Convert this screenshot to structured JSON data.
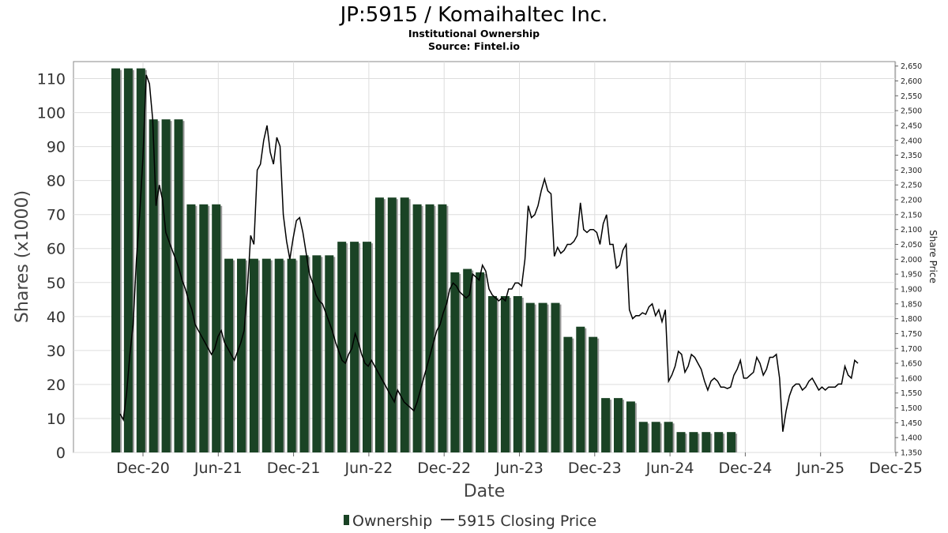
{
  "title": "JP:5915 / Komaihaltec Inc.",
  "subtitle": "Institutional Ownership",
  "source": "Source: Fintel.io",
  "colors": {
    "bar": "#1a4325",
    "bar_shadow": "#9a9a9a",
    "line": "#000000",
    "grid": "#dddddd"
  },
  "chart_data": {
    "type": "bar",
    "xlabel": "Date",
    "ylabel": "Shares (x1000)",
    "y2label": "Share Price",
    "x_ticks": [
      "Dec-20",
      "Jun-21",
      "Dec-21",
      "Jun-22",
      "Dec-22",
      "Jun-23",
      "Dec-23",
      "Jun-24",
      "Dec-24",
      "Jun-25",
      "Dec-25"
    ],
    "y_ticks": [
      "0",
      "10",
      "20",
      "30",
      "40",
      "50",
      "60",
      "70",
      "80",
      "90",
      "100",
      "110"
    ],
    "y2_ticks": [
      "1,350",
      "1,400",
      "1,450",
      "1,500",
      "1,550",
      "1,600",
      "1,650",
      "1,700",
      "1,750",
      "1,800",
      "1,850",
      "1,900",
      "1,950",
      "2,000",
      "2,050",
      "2,100",
      "2,150",
      "2,200",
      "2,250",
      "2,300",
      "2,350",
      "2,400",
      "2,450",
      "2,500",
      "2,550",
      "2,600",
      "2,650"
    ],
    "ylim": [
      0,
      115
    ],
    "y2lim": [
      1350,
      2665
    ],
    "grid": true,
    "legend": {
      "position": "bottom",
      "entries": [
        "Ownership",
        "5915 Closing Price"
      ]
    },
    "series": [
      {
        "name": "Ownership",
        "type": "bar",
        "values": [
          113,
          113,
          113,
          98,
          98,
          98,
          73,
          73,
          73,
          57,
          57,
          57,
          57,
          57,
          57,
          58,
          58,
          58,
          62,
          62,
          62,
          75,
          75,
          75,
          73,
          73,
          73,
          53,
          54,
          53,
          46,
          46,
          46,
          44,
          44,
          44,
          34,
          37,
          34,
          16,
          16,
          15,
          9,
          9,
          9,
          6,
          6,
          6,
          6,
          6
        ]
      },
      {
        "name": "5915 Closing Price",
        "type": "line",
        "x_range": [
          "2020-11",
          "2025-10"
        ],
        "values": [
          1480,
          1460,
          1550,
          1680,
          1780,
          2000,
          2150,
          2340,
          2620,
          2590,
          2470,
          2180,
          2250,
          2200,
          2090,
          2060,
          2030,
          2000,
          1970,
          1930,
          1900,
          1860,
          1830,
          1780,
          1760,
          1740,
          1720,
          1700,
          1680,
          1700,
          1740,
          1760,
          1720,
          1700,
          1680,
          1660,
          1690,
          1720,
          1760,
          1900,
          2080,
          2050,
          2300,
          2320,
          2400,
          2450,
          2360,
          2320,
          2410,
          2380,
          2150,
          2060,
          2000,
          2070,
          2130,
          2140,
          2090,
          2020,
          1950,
          1920,
          1880,
          1860,
          1850,
          1820,
          1790,
          1760,
          1720,
          1690,
          1660,
          1650,
          1680,
          1700,
          1750,
          1720,
          1680,
          1650,
          1640,
          1660,
          1640,
          1620,
          1600,
          1580,
          1560,
          1540,
          1520,
          1560,
          1540,
          1520,
          1510,
          1500,
          1490,
          1520,
          1560,
          1600,
          1640,
          1680,
          1720,
          1760,
          1780,
          1820,
          1850,
          1900,
          1920,
          1910,
          1890,
          1880,
          1870,
          1880,
          1950,
          1940,
          1930,
          1980,
          1960,
          1900,
          1880,
          1870,
          1860,
          1870,
          1860,
          1900,
          1900,
          1920,
          1920,
          1910,
          2000,
          2180,
          2140,
          2150,
          2180,
          2230,
          2270,
          2230,
          2220,
          2010,
          2040,
          2020,
          2030,
          2050,
          2050,
          2060,
          2080,
          2190,
          2100,
          2090,
          2100,
          2100,
          2090,
          2050,
          2120,
          2150,
          2050,
          2050,
          1970,
          1980,
          2030,
          2050,
          1830,
          1800,
          1810,
          1810,
          1820,
          1815,
          1840,
          1850,
          1810,
          1830,
          1790,
          1830,
          1590,
          1610,
          1640,
          1690,
          1680,
          1620,
          1640,
          1680,
          1670,
          1650,
          1630,
          1590,
          1560,
          1590,
          1600,
          1590,
          1570,
          1570,
          1565,
          1570,
          1610,
          1630,
          1660,
          1600,
          1600,
          1610,
          1620,
          1670,
          1650,
          1610,
          1630,
          1670,
          1670,
          1680,
          1600,
          1420,
          1490,
          1540,
          1570,
          1580,
          1580,
          1560,
          1570,
          1590,
          1600,
          1580,
          1560,
          1570,
          1560,
          1570,
          1570,
          1570,
          1580,
          1580,
          1640,
          1610,
          1600,
          1660,
          1650
        ]
      }
    ]
  }
}
